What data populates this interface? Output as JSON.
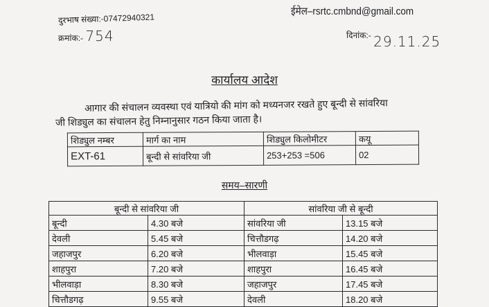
{
  "header": {
    "phone": "दुरभाष संख्या:-07472940321",
    "order_no_label": "क्रमांक:-",
    "order_no": "754",
    "email": "ईमेल–rsrtc.cmbnd@gmail.com",
    "date_label": "दिनांक:-",
    "date": "29.11.25"
  },
  "title": "कार्यालय आदेश",
  "paragraph": {
    "line1": "आगार की संचालन व्यवस्था एवं यात्रियो की मांग को मध्यनजर रखते हुए बून्दी से सांवरिया",
    "line2": "जी शिड्युल का संचालन हेतु निम्नानुसार गठन किया जाता है।"
  },
  "schedule_table": {
    "headers": [
      "शिड्युल नम्बर",
      "मार्ग का नाम",
      "शिड्युल किलोमीटर",
      "कयू"
    ],
    "row": [
      "EXT-61",
      "बून्दी से सांवरिया जी",
      "253+253 =506",
      "02"
    ]
  },
  "timetable": {
    "title": "समय–सारणी",
    "left_header": "बून्दी से सांवरिया जी",
    "right_header": "सांवरिया जी से बून्दी",
    "rows": [
      [
        "बून्दी",
        "4.30 बजे",
        "सांवरिया जी",
        "13.15 बजे"
      ],
      [
        "देवली",
        "5.45 बजे",
        "चित्तौडगढ़",
        "14.20 बजे"
      ],
      [
        "जहाजपुर",
        "6.20 बजे",
        "भीलवाड़ा",
        "15.45 बजे"
      ],
      [
        "शाहपुरा",
        "7.20 बजे",
        "शाहपुरा",
        "16.45 बजे"
      ],
      [
        "भीलवाड़ा",
        "8.30 बजे",
        "जहाजपुर",
        "17.45 बजे"
      ],
      [
        "चित्तौडगढ़",
        "9.55 बजे",
        "देवली",
        "18.20 बजे"
      ]
    ]
  }
}
